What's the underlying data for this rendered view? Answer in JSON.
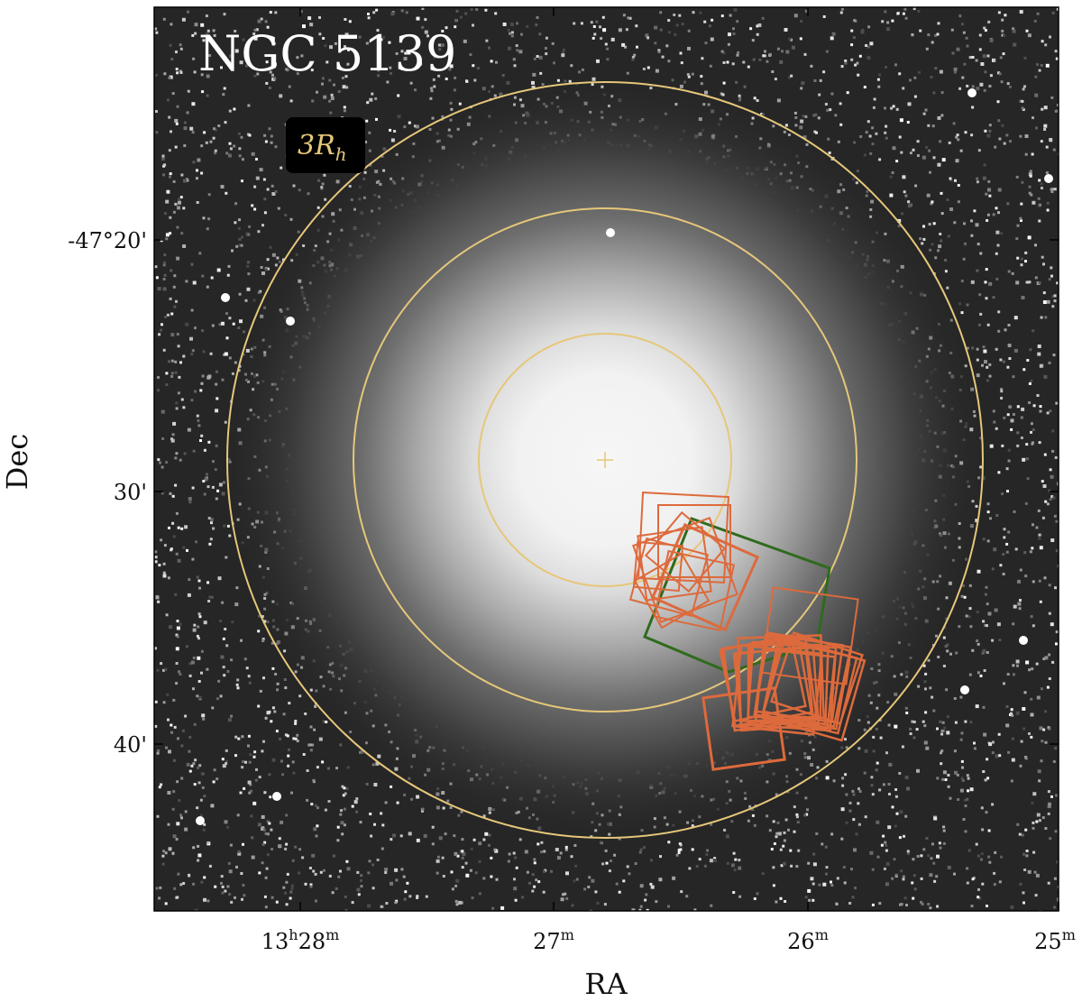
{
  "title": "NGC 5139",
  "legend": {
    "base": "3R",
    "subscript": "h"
  },
  "axes": {
    "xlabel": "RA",
    "ylabel": "Dec",
    "x_ticks": [
      {
        "main": "13",
        "sup1": "h",
        "mid": "28",
        "sup2": "m"
      },
      {
        "main": "27",
        "sup1": "",
        "mid": "",
        "sup2": "m"
      },
      {
        "main": "26",
        "sup1": "",
        "mid": "",
        "sup2": "m"
      },
      {
        "main": "25",
        "sup1": "",
        "mid": "",
        "sup2": "m"
      }
    ],
    "y_ticks": [
      "-47°20'",
      "30'",
      "40'"
    ]
  },
  "colors": {
    "rh_circle": "#e6c77a",
    "field_orange": "#dd6a3c",
    "field_green": "#2f6b1d",
    "background_sky": "#262626"
  },
  "circles": {
    "labels_multiples_of_rh": [
      1,
      2,
      3
    ]
  }
}
